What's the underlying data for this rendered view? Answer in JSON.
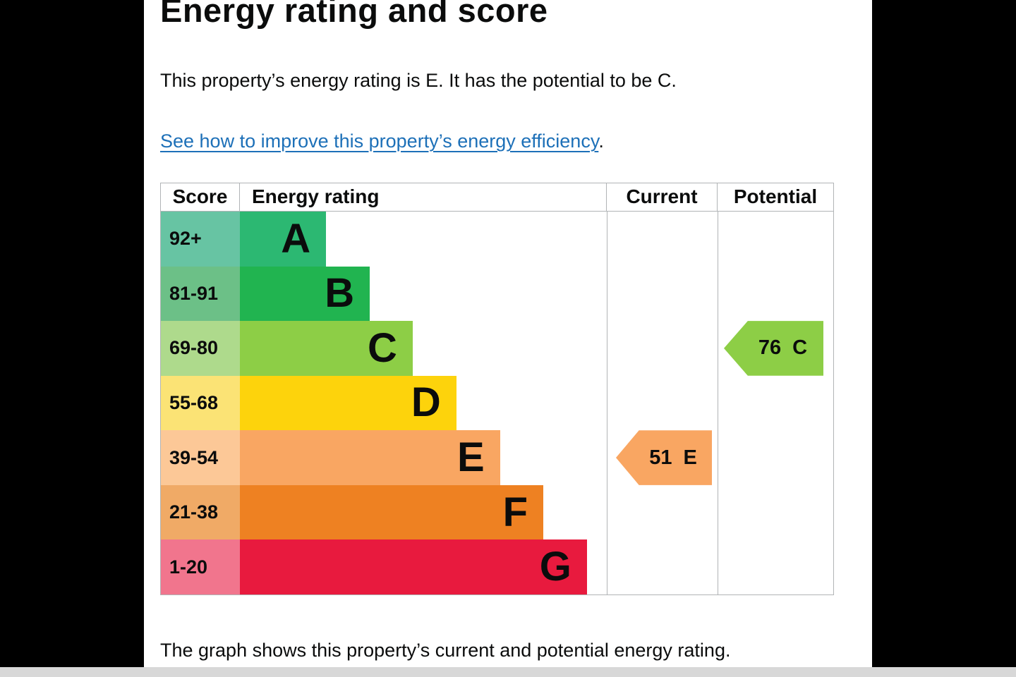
{
  "page": {
    "title": "Energy rating and score",
    "summary": "This property’s energy rating is E. It has the potential to be C.",
    "link_text": "See how to improve this property’s energy efficiency",
    "link_suffix": ".",
    "caption": "The graph shows this property’s current and potential energy rating."
  },
  "table": {
    "headers": {
      "score": "Score",
      "rating": "Energy rating",
      "current": "Current",
      "potential": "Potential"
    },
    "rows": [
      {
        "range": "92+",
        "letter": "A",
        "bar_color": "#2cb872",
        "score_color": "#67c4a3",
        "bar_width_pct": 23.5
      },
      {
        "range": "81-91",
        "letter": "B",
        "bar_color": "#21b450",
        "score_color": "#6cc087",
        "bar_width_pct": 35.4
      },
      {
        "range": "69-80",
        "letter": "C",
        "bar_color": "#8dce46",
        "score_color": "#aeda8c",
        "bar_width_pct": 47.1
      },
      {
        "range": "55-68",
        "letter": "D",
        "bar_color": "#fdd30c",
        "score_color": "#fbe375",
        "bar_width_pct": 59.0
      },
      {
        "range": "39-54",
        "letter": "E",
        "bar_color": "#f9a662",
        "score_color": "#fcc897",
        "bar_width_pct": 70.9
      },
      {
        "range": "21-38",
        "letter": "F",
        "bar_color": "#ee8122",
        "score_color": "#f0aa66",
        "bar_width_pct": 82.7
      },
      {
        "range": "1-20",
        "letter": "G",
        "bar_color": "#e81a3e",
        "score_color": "#f1758d",
        "bar_width_pct": 94.6
      }
    ]
  },
  "arrows": {
    "current": {
      "value": "51",
      "grade": "E",
      "color": "#f9a662"
    },
    "potential": {
      "value": "76",
      "grade": "C",
      "color": "#8dce46"
    }
  },
  "colors": {
    "text": "#0b0c0c",
    "link": "#1d70b8",
    "table_border": "#b1b4b6",
    "letterbox": "#000000",
    "bottom_strip": "#d8d8d8"
  },
  "chart_data": {
    "type": "bar",
    "variant": "epc-energy-rating-chart",
    "title": "Energy rating and score",
    "columns": [
      "Score",
      "Energy rating",
      "Current",
      "Potential"
    ],
    "bands": [
      {
        "grade": "A",
        "score_range": "92+",
        "color": "#2cb872"
      },
      {
        "grade": "B",
        "score_range": "81-91",
        "color": "#21b450"
      },
      {
        "grade": "C",
        "score_range": "69-80",
        "color": "#8dce46"
      },
      {
        "grade": "D",
        "score_range": "55-68",
        "color": "#fdd30c"
      },
      {
        "grade": "E",
        "score_range": "39-54",
        "color": "#f9a662"
      },
      {
        "grade": "F",
        "score_range": "21-38",
        "color": "#ee8122"
      },
      {
        "grade": "G",
        "score_range": "1-20",
        "color": "#e81a3e"
      }
    ],
    "current": {
      "score": 51,
      "grade": "E"
    },
    "potential": {
      "score": 76,
      "grade": "C"
    }
  }
}
